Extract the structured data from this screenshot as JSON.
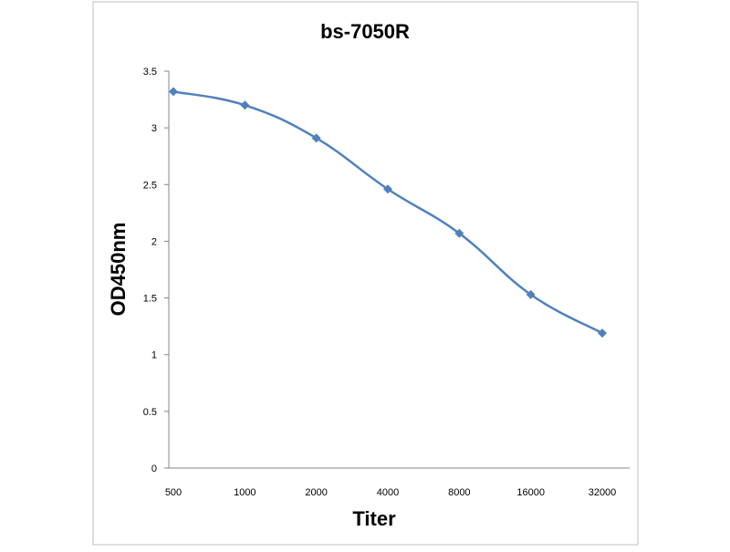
{
  "chart_data": {
    "type": "line",
    "title": "bs-7050R",
    "xlabel": "Titer",
    "ylabel": "OD450nm",
    "categories": [
      "500",
      "1000",
      "2000",
      "4000",
      "8000",
      "16000",
      "32000"
    ],
    "series": [
      {
        "values": [
          3.32,
          3.2,
          2.91,
          2.46,
          2.07,
          1.53,
          1.19
        ]
      }
    ],
    "ylim": [
      0,
      3.5
    ],
    "yticks": [
      "0",
      "0.5",
      "1",
      "1.5",
      "2",
      "2.5",
      "3",
      "3.5"
    ],
    "grid": false,
    "legend": "none",
    "colors": {
      "series": "#4f81bd",
      "axis": "#868686",
      "frame": "#bfbfbf"
    }
  }
}
